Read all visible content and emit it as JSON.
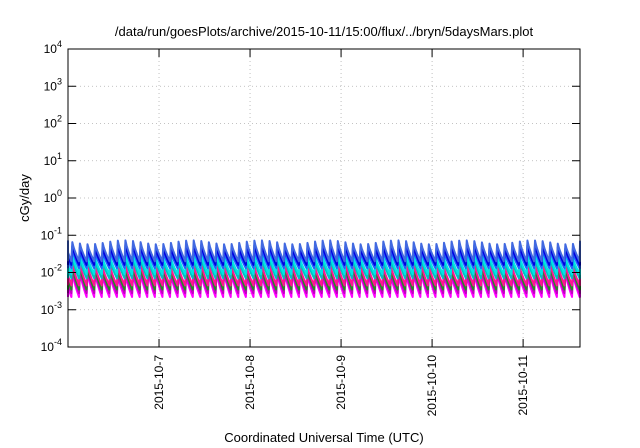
{
  "chart_data": {
    "type": "line",
    "title": "/data/run/goesPlots/archive/2015-10-11/15:00/flux/../bryn/5daysMars.plot",
    "xlabel": "Coordinated Universal Time (UTC)",
    "ylabel": "cGy/day",
    "y_scale": "log",
    "ylim": [
      0.0001,
      10000
    ],
    "xlim": [
      "2015-10-06T00:00",
      "2015-10-11T15:00"
    ],
    "x_ticks": [
      "2015-10-7",
      "2015-10-8",
      "2015-10-9",
      "2015-10-10",
      "2015-10-11"
    ],
    "y_ticks": [
      {
        "base": "10",
        "exp": "4",
        "value": 10000
      },
      {
        "base": "10",
        "exp": "3",
        "value": 1000
      },
      {
        "base": "10",
        "exp": "2",
        "value": 100
      },
      {
        "base": "10",
        "exp": "1",
        "value": 10
      },
      {
        "base": "10",
        "exp": "0",
        "value": 1
      },
      {
        "base": "10",
        "exp": "-1",
        "value": 0.1
      },
      {
        "base": "10",
        "exp": "-2",
        "value": 0.01
      },
      {
        "base": "10",
        "exp": "-3",
        "value": 0.001
      },
      {
        "base": "10",
        "exp": "-4",
        "value": 0.0001
      }
    ],
    "grid": true,
    "waveform": "sawtooth, approx. 12 cycles per day; sharp rise to peak then decay",
    "series": [
      {
        "color": "#ff00ff",
        "peak": 0.009,
        "trough": 0.0022
      },
      {
        "color": "#c000c0",
        "peak": 0.011,
        "trough": 0.0028
      },
      {
        "color": "#228b22",
        "peak": 0.013,
        "trough": 0.0035
      },
      {
        "color": "#ff1493",
        "peak": 0.016,
        "trough": 0.0045
      },
      {
        "color": "#00c0c0",
        "peak": 0.022,
        "trough": 0.007
      },
      {
        "color": "#00e5e5",
        "peak": 0.028,
        "trough": 0.009
      },
      {
        "color": "#2060ff",
        "peak": 0.04,
        "trough": 0.013
      },
      {
        "color": "#0000e0",
        "peak": 0.05,
        "trough": 0.016
      },
      {
        "color": "#4169e1",
        "peak": 0.065,
        "trough": 0.02
      }
    ]
  }
}
